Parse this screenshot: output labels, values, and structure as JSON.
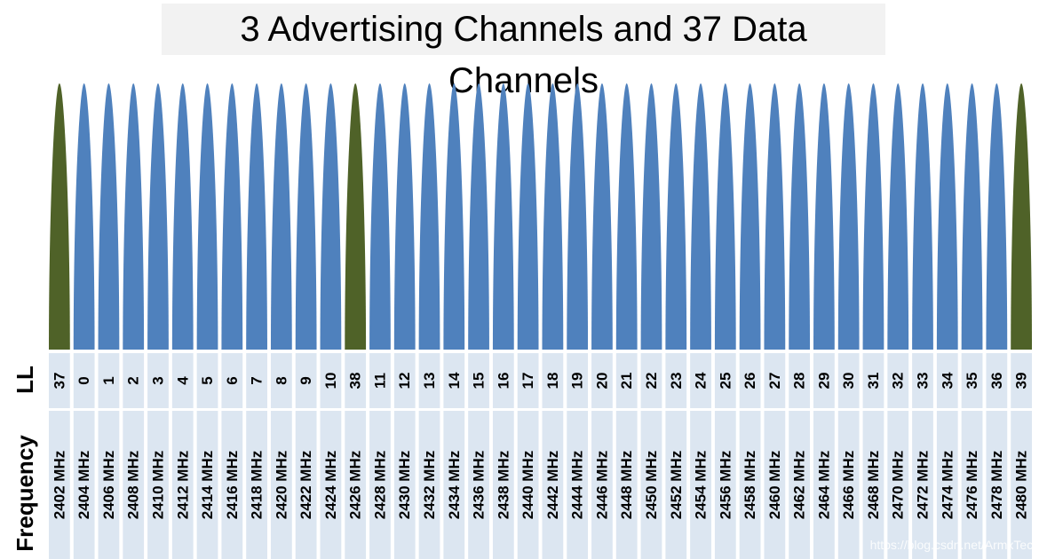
{
  "title": "3 Advertising Channels and 37 Data Channels",
  "row_labels": {
    "ll": "LL",
    "frequency": "Frequency"
  },
  "colors": {
    "advertising": "#4f6228",
    "data": "#4f81bd",
    "table_bg": "#dce6f1"
  },
  "channels": [
    {
      "ll": "37",
      "freq": "2402 MHz",
      "kind": "advertising"
    },
    {
      "ll": "0",
      "freq": "2404 MHz",
      "kind": "data"
    },
    {
      "ll": "1",
      "freq": "2406 MHz",
      "kind": "data"
    },
    {
      "ll": "2",
      "freq": "2408 MHz",
      "kind": "data"
    },
    {
      "ll": "3",
      "freq": "2410 MHz",
      "kind": "data"
    },
    {
      "ll": "4",
      "freq": "2412 MHz",
      "kind": "data"
    },
    {
      "ll": "5",
      "freq": "2414 MHz",
      "kind": "data"
    },
    {
      "ll": "6",
      "freq": "2416 MHz",
      "kind": "data"
    },
    {
      "ll": "7",
      "freq": "2418 MHz",
      "kind": "data"
    },
    {
      "ll": "8",
      "freq": "2420 MHz",
      "kind": "data"
    },
    {
      "ll": "9",
      "freq": "2422 MHz",
      "kind": "data"
    },
    {
      "ll": "10",
      "freq": "2424 MHz",
      "kind": "data"
    },
    {
      "ll": "38",
      "freq": "2426 MHz",
      "kind": "advertising"
    },
    {
      "ll": "11",
      "freq": "2428 MHz",
      "kind": "data"
    },
    {
      "ll": "12",
      "freq": "2430 MHz",
      "kind": "data"
    },
    {
      "ll": "13",
      "freq": "2432 MHz",
      "kind": "data"
    },
    {
      "ll": "14",
      "freq": "2434 MHz",
      "kind": "data"
    },
    {
      "ll": "15",
      "freq": "2436 MHz",
      "kind": "data"
    },
    {
      "ll": "16",
      "freq": "2438 MHz",
      "kind": "data"
    },
    {
      "ll": "17",
      "freq": "2440 MHz",
      "kind": "data"
    },
    {
      "ll": "18",
      "freq": "2442 MHz",
      "kind": "data"
    },
    {
      "ll": "19",
      "freq": "2444 MHz",
      "kind": "data"
    },
    {
      "ll": "20",
      "freq": "2446 MHz",
      "kind": "data"
    },
    {
      "ll": "21",
      "freq": "2448 MHz",
      "kind": "data"
    },
    {
      "ll": "22",
      "freq": "2450 MHz",
      "kind": "data"
    },
    {
      "ll": "23",
      "freq": "2452 MHz",
      "kind": "data"
    },
    {
      "ll": "24",
      "freq": "2454 MHz",
      "kind": "data"
    },
    {
      "ll": "25",
      "freq": "2456 MHz",
      "kind": "data"
    },
    {
      "ll": "26",
      "freq": "2458 MHz",
      "kind": "data"
    },
    {
      "ll": "27",
      "freq": "2460 MHz",
      "kind": "data"
    },
    {
      "ll": "28",
      "freq": "2462 MHz",
      "kind": "data"
    },
    {
      "ll": "29",
      "freq": "2464 MHz",
      "kind": "data"
    },
    {
      "ll": "30",
      "freq": "2466 MHz",
      "kind": "data"
    },
    {
      "ll": "31",
      "freq": "2468 MHz",
      "kind": "data"
    },
    {
      "ll": "32",
      "freq": "2470 MHz",
      "kind": "data"
    },
    {
      "ll": "33",
      "freq": "2472 MHz",
      "kind": "data"
    },
    {
      "ll": "34",
      "freq": "2474 MHz",
      "kind": "data"
    },
    {
      "ll": "35",
      "freq": "2476 MHz",
      "kind": "data"
    },
    {
      "ll": "36",
      "freq": "2478 MHz",
      "kind": "data"
    },
    {
      "ll": "39",
      "freq": "2480 MHz",
      "kind": "advertising"
    }
  ],
  "watermark": "https://blog.csdn.net/ArmxTech"
}
